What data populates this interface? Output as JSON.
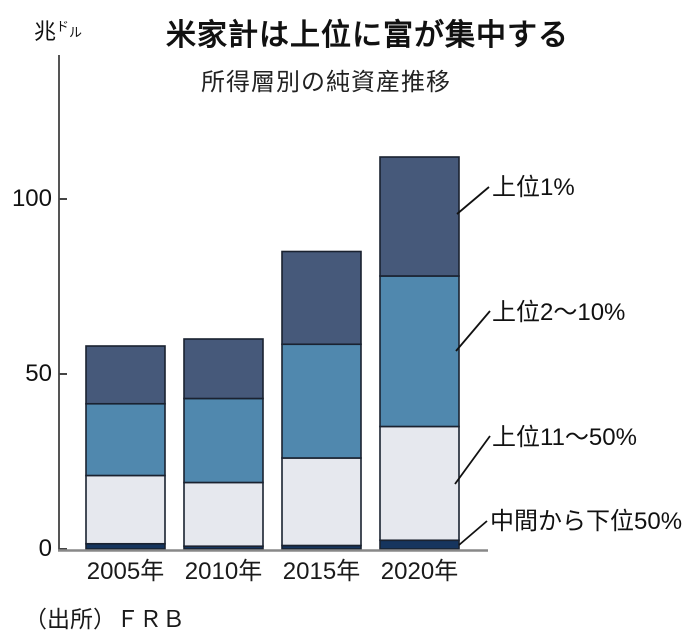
{
  "title": "米家計は上位に富が集中する",
  "subtitle": "所得層別の純資産推移",
  "y_unit": {
    "main": "兆",
    "sub_1": "ド",
    "sub_2": "ル"
  },
  "source": "（出所）ＦＲＢ",
  "colors": {
    "top1": "#46597a",
    "top2_10": "#5088ae",
    "top11_50": "#e6e8ee",
    "bottom50": "#16355e",
    "bar_border": "#1a2230",
    "axis": "#555555",
    "baseline": "#888888",
    "leader_line": "#111111",
    "text": "#111111"
  },
  "chart_data": {
    "type": "bar",
    "stacked": true,
    "title": "米家計は上位に富が集中する",
    "subtitle": "所得層別の純資産推移",
    "ylabel": "兆ドル",
    "source": "（出所）ＦＲＢ",
    "categories": [
      "2005年",
      "2010年",
      "2015年",
      "2020年"
    ],
    "series": [
      {
        "name": "中間から下位50%",
        "color": "#16355e",
        "values": [
          1.5,
          0.8,
          1,
          2.5
        ]
      },
      {
        "name": "上位11〜50%",
        "color": "#e6e8ee",
        "values": [
          19.5,
          18.2,
          25,
          32.5
        ]
      },
      {
        "name": "上位2〜10%",
        "color": "#5088ae",
        "values": [
          20.5,
          24,
          32.5,
          43
        ]
      },
      {
        "name": "上位1%",
        "color": "#46597a",
        "values": [
          16.5,
          17,
          26.5,
          34
        ]
      }
    ],
    "totals": [
      58,
      60,
      85,
      112
    ],
    "yticks": [
      0,
      50,
      100
    ],
    "ylim": [
      0,
      120
    ],
    "grid": false,
    "legend_position": "right-annotations",
    "annotations": [
      "上位1%",
      "上位2〜10%",
      "上位11〜50%",
      "中間から下位50%"
    ]
  }
}
